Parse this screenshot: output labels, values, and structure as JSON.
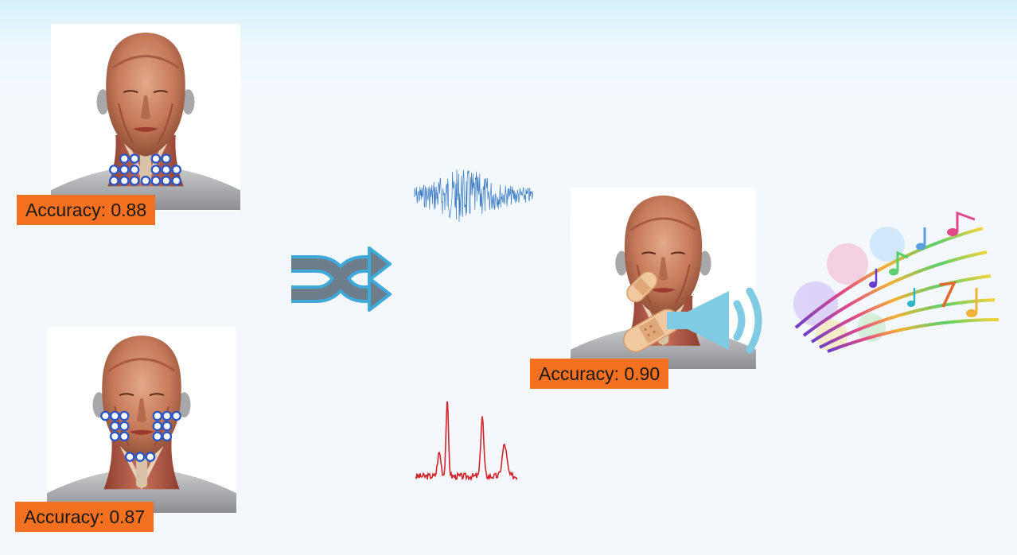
{
  "panels": {
    "neck_config": {
      "accuracy_label": "Accuracy: 0.88"
    },
    "face_config": {
      "accuracy_label": "Accuracy: 0.87"
    },
    "patch_config": {
      "accuracy_label": "Accuracy: 0.90"
    }
  },
  "icons": {
    "shuffle": "shuffle-icon",
    "signal_raw": "emg-waveform-icon",
    "signal_spectrum": "spectrum-icon",
    "speaker": "speaker-icon",
    "music": "music-notes-icon"
  },
  "colors": {
    "badge": "#f37021",
    "electrode": "#2a56c6",
    "waveform": "#3a7cc3",
    "spectrum": "#d0262b",
    "shuffle_fill": "#6e7d8c",
    "shuffle_outline": "#3fa9d9",
    "speaker": "#7fcbe3"
  }
}
